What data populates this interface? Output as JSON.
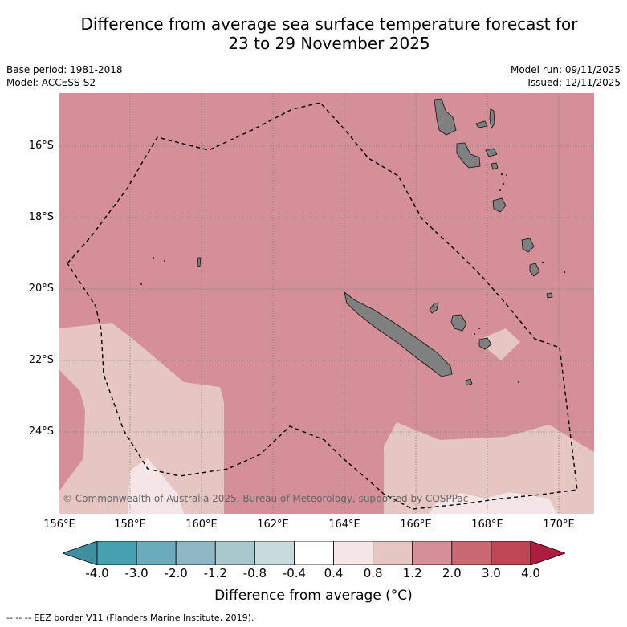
{
  "title_line1": "Difference from average sea surface temperature forecast for",
  "title_line2": "23 to 29 November 2025",
  "base_period": "Base period: 1981-2018",
  "model": "Model: ACCESS-S2",
  "model_run": "Model run: 09/11/2025",
  "issued": "Issued: 12/11/2025",
  "lat_labels": [
    "16°S",
    "18°S",
    "20°S",
    "22°S",
    "24°S"
  ],
  "lon_labels": [
    "156°E",
    "158°E",
    "160°E",
    "162°E",
    "164°E",
    "166°E",
    "168°E",
    "170°E"
  ],
  "copyright": "© Commonwealth of Australia 2025, Bureau of Meteorology, supported by COSPPac",
  "colorbar": {
    "ticks": [
      "-4.0",
      "-3.0",
      "-2.0",
      "-1.2",
      "-0.8",
      "-0.4",
      "0.4",
      "0.8",
      "1.2",
      "2.0",
      "3.0",
      "4.0"
    ],
    "colors": [
      "#3f8f9e",
      "#45a1b1",
      "#6aacbb",
      "#8fb8c4",
      "#a9c8cd",
      "#c8dadc",
      "#ffffff",
      "#f4e6e6",
      "#e6c6c2",
      "#d48f98",
      "#c96872",
      "#bf4654",
      "#ad1e3e"
    ],
    "title": "Difference from average (°C)"
  },
  "footnote": "--  --  -- EEZ border V11 (Flanders Marine Institute, 2019).",
  "colors": {
    "anomaly_2_0": "#d48f98",
    "anomaly_1_2": "#e6c6c2",
    "anomaly_0_8": "#f4e6e6",
    "land": "#808080",
    "grid": "#777777"
  }
}
